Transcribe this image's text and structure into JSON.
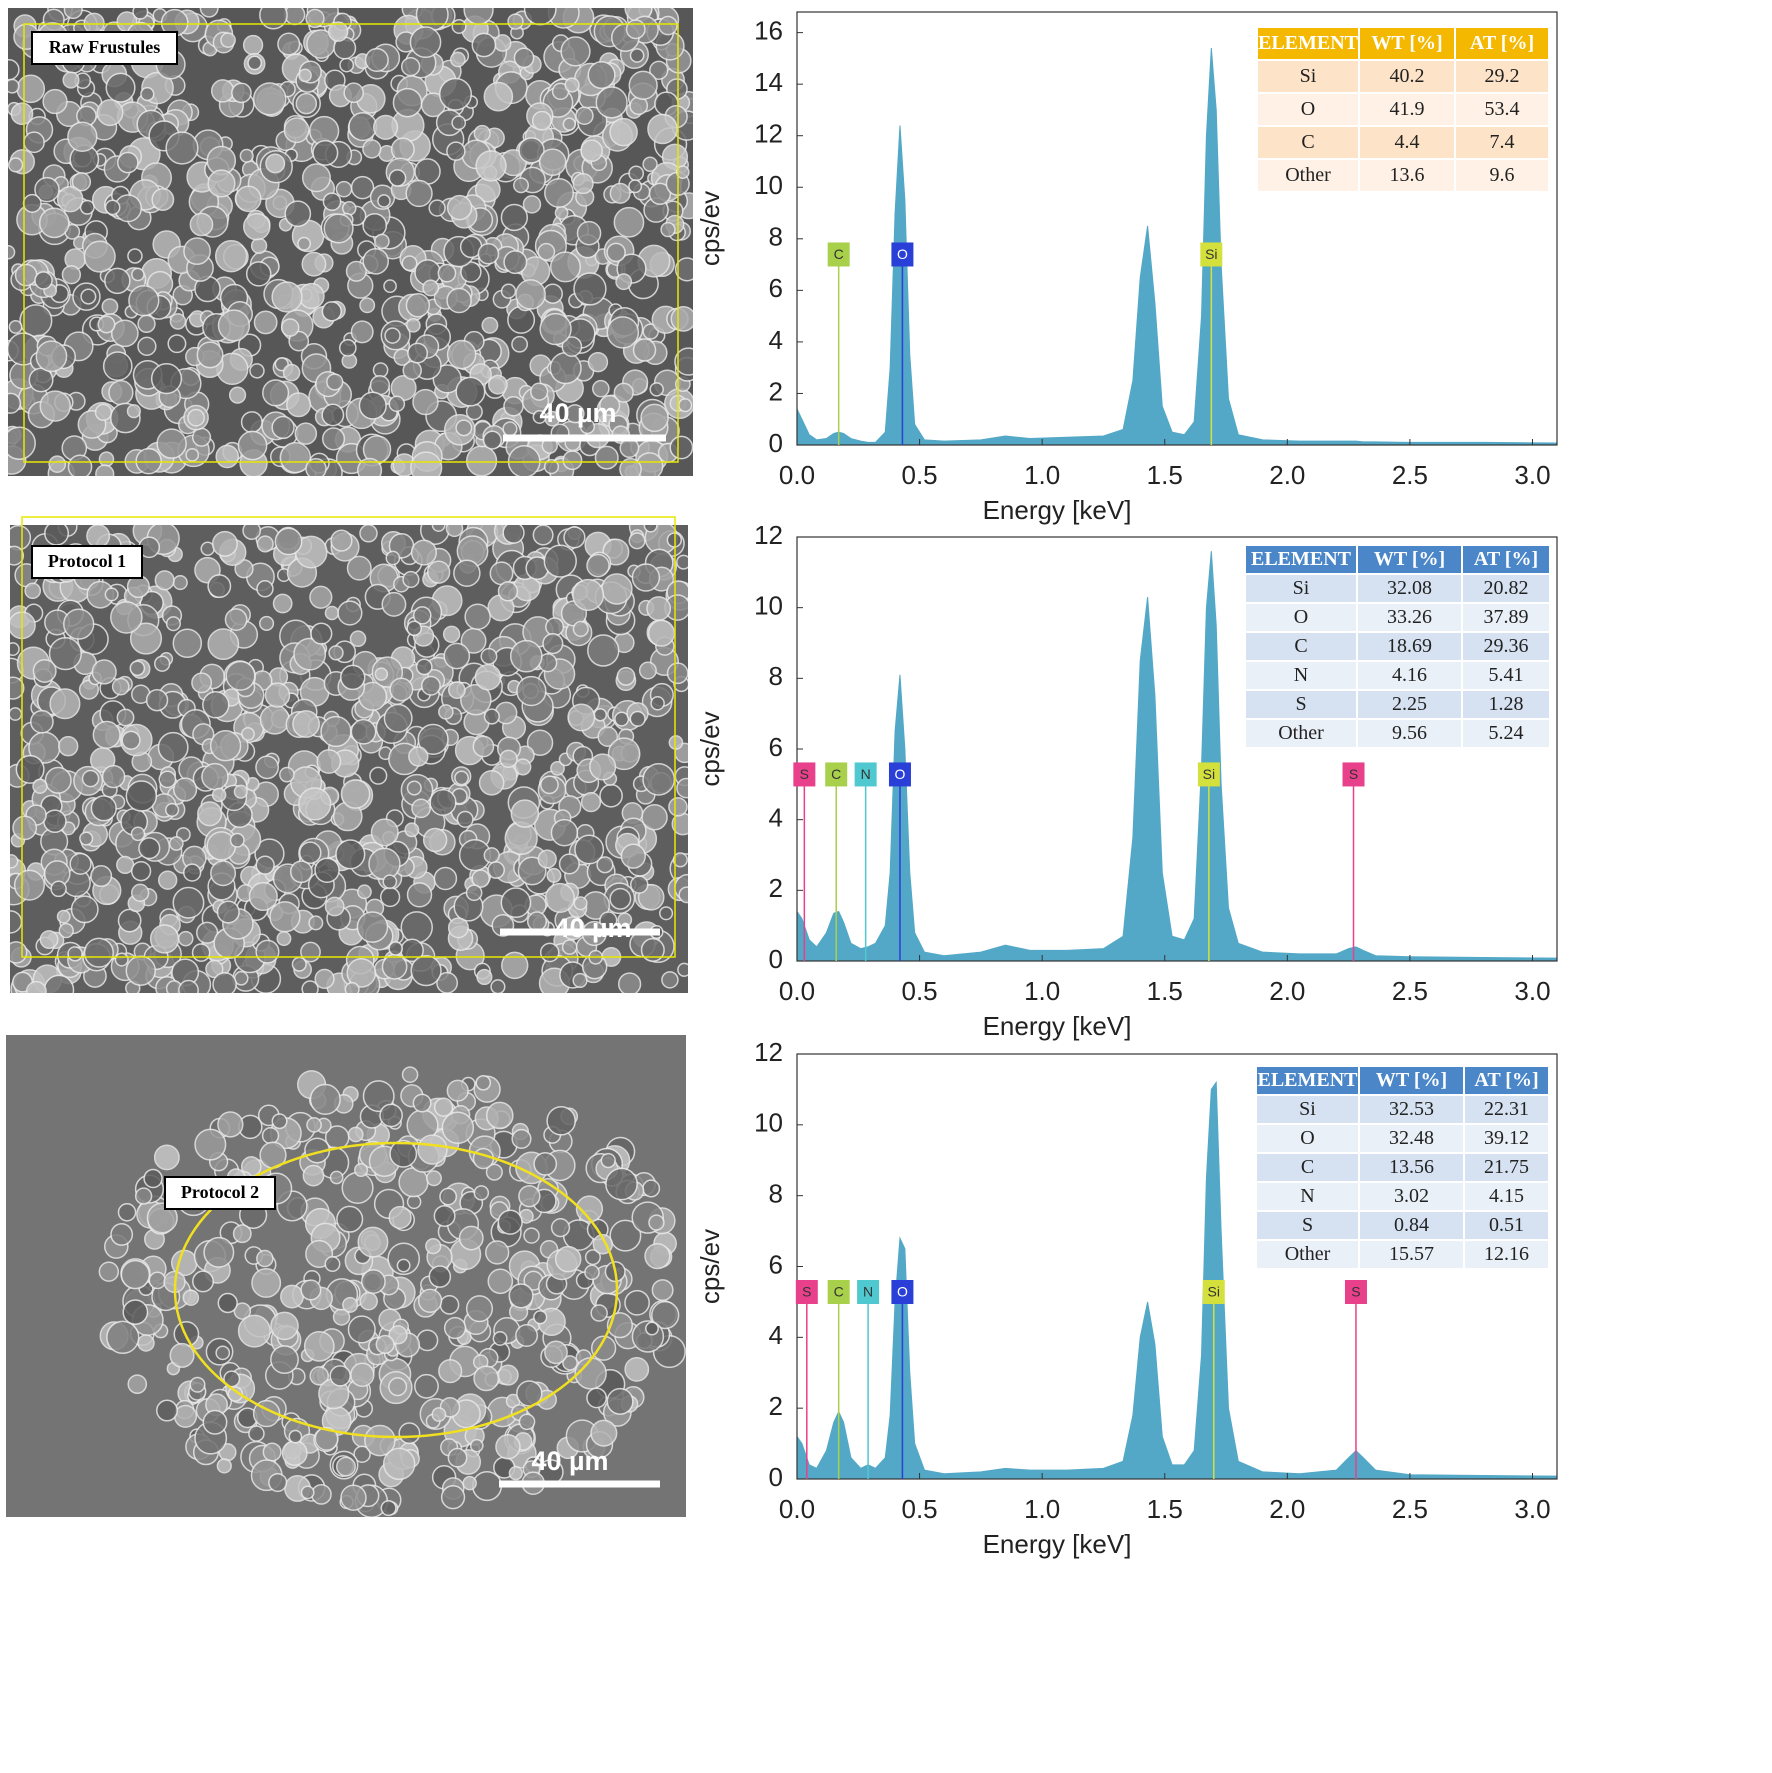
{
  "chart_data": [
    {
      "type": "area",
      "panel_label": "Raw Frustules",
      "scale_label": "40 µm",
      "color": "#52a8c6",
      "xlabel": "Energy [keV]",
      "ylabel": "cps/ev",
      "xlim": [
        0,
        3.1
      ],
      "ylim": [
        0,
        16.8
      ],
      "xticks": [
        {
          "value": 0,
          "label": "0.0"
        },
        0.5,
        {
          "value": 1,
          "label": "1.0"
        },
        1.5,
        {
          "value": 2,
          "label": "2.0"
        },
        2.5,
        {
          "value": 3,
          "label": "3.0"
        }
      ],
      "yticks": [
        0,
        2,
        4,
        6,
        8,
        10,
        12,
        14,
        16
      ],
      "x": [
        0,
        0.02,
        0.05,
        0.08,
        0.12,
        0.15,
        0.17,
        0.19,
        0.22,
        0.26,
        0.29,
        0.32,
        0.36,
        0.38,
        0.4,
        0.42,
        0.44,
        0.46,
        0.48,
        0.52,
        0.6,
        0.75,
        0.85,
        0.95,
        1.1,
        1.25,
        1.33,
        1.37,
        1.4,
        1.43,
        1.46,
        1.49,
        1.53,
        1.58,
        1.62,
        1.65,
        1.67,
        1.69,
        1.71,
        1.73,
        1.76,
        1.8,
        1.9,
        2.05,
        2.2,
        2.25,
        2.28,
        2.31,
        2.36,
        2.5,
        2.8,
        3.1
      ],
      "values": [
        1.4,
        1.0,
        0.4,
        0.2,
        0.25,
        0.45,
        0.5,
        0.45,
        0.25,
        0.15,
        0.1,
        0.1,
        0.5,
        3.0,
        9.0,
        12.4,
        9.5,
        3.5,
        0.8,
        0.2,
        0.15,
        0.2,
        0.35,
        0.25,
        0.3,
        0.35,
        0.6,
        2.5,
        6.5,
        8.5,
        5.5,
        1.5,
        0.5,
        0.4,
        0.9,
        5,
        12,
        15.4,
        13,
        7,
        1.8,
        0.4,
        0.2,
        0.15,
        0.15,
        0.15,
        0.15,
        0.12,
        0.12,
        0.1,
        0.1,
        0.08
      ],
      "markers": [
        {
          "label": "C",
          "x": 0.17,
          "color": "#a8d04a"
        },
        {
          "label": "O",
          "x": 0.43,
          "color": "#2a3fd8"
        },
        {
          "label": "Si",
          "x": 1.69,
          "color": "#d4e03c"
        }
      ],
      "table": {
        "header_color": "#f5b800",
        "row_colors": [
          "#fde3c8",
          "#fff1e5"
        ],
        "columns": [
          "ELEMENT",
          "WT [%]",
          "AT [%]"
        ],
        "rows": [
          [
            "Si",
            40.2,
            29.2
          ],
          [
            "O",
            41.9,
            53.4
          ],
          [
            "C",
            4.4,
            7.4
          ],
          [
            "Other",
            13.6,
            9.6
          ]
        ]
      }
    },
    {
      "type": "area",
      "panel_label": "Protocol 1",
      "scale_label": "40 µm",
      "color": "#52a8c6",
      "xlabel": "Energy [keV]",
      "ylabel": "cps/ev",
      "xlim": [
        0,
        3.1
      ],
      "ylim": [
        0,
        12
      ],
      "xticks": [
        {
          "value": 0,
          "label": "0.0"
        },
        0.5,
        {
          "value": 1,
          "label": "1.0"
        },
        1.5,
        {
          "value": 2,
          "label": "2.0"
        },
        2.5,
        {
          "value": 3,
          "label": "3.0"
        }
      ],
      "yticks": [
        0,
        2,
        4,
        6,
        8,
        10,
        12
      ],
      "x": [
        0,
        0.02,
        0.05,
        0.08,
        0.12,
        0.15,
        0.17,
        0.19,
        0.22,
        0.26,
        0.29,
        0.32,
        0.36,
        0.38,
        0.4,
        0.42,
        0.44,
        0.46,
        0.48,
        0.52,
        0.6,
        0.75,
        0.85,
        0.95,
        1.1,
        1.25,
        1.33,
        1.37,
        1.4,
        1.43,
        1.46,
        1.49,
        1.53,
        1.58,
        1.62,
        1.65,
        1.67,
        1.69,
        1.71,
        1.73,
        1.76,
        1.8,
        1.9,
        2.05,
        2.2,
        2.25,
        2.28,
        2.31,
        2.36,
        2.5,
        2.8,
        3.1
      ],
      "values": [
        1.4,
        1.2,
        0.6,
        0.4,
        0.8,
        1.35,
        1.4,
        1.1,
        0.5,
        0.35,
        0.4,
        0.5,
        1.0,
        2.5,
        6.5,
        8.1,
        6.0,
        2.5,
        0.8,
        0.25,
        0.15,
        0.25,
        0.45,
        0.3,
        0.3,
        0.35,
        0.7,
        3.5,
        8.5,
        10.3,
        7.5,
        2.5,
        0.7,
        0.6,
        1.2,
        5.5,
        10,
        11.6,
        9.5,
        5,
        1.5,
        0.5,
        0.25,
        0.2,
        0.2,
        0.35,
        0.4,
        0.3,
        0.15,
        0.12,
        0.1,
        0.08
      ],
      "markers": [
        {
          "label": "S",
          "x": 0.03,
          "color": "#e8408a"
        },
        {
          "label": "C",
          "x": 0.16,
          "color": "#a8d04a"
        },
        {
          "label": "N",
          "x": 0.28,
          "color": "#50c8d0"
        },
        {
          "label": "O",
          "x": 0.42,
          "color": "#2a3fd8"
        },
        {
          "label": "Si",
          "x": 1.68,
          "color": "#d4e03c"
        },
        {
          "label": "S",
          "x": 2.27,
          "color": "#e8408a"
        }
      ],
      "table": {
        "header_color": "#4a86c8",
        "row_colors": [
          "#d6e2f2",
          "#eaf0f8"
        ],
        "columns": [
          "ELEMENT",
          "WT [%]",
          "AT [%]"
        ],
        "rows": [
          [
            "Si",
            32.08,
            20.82
          ],
          [
            "O",
            33.26,
            37.89
          ],
          [
            "C",
            18.69,
            29.36
          ],
          [
            "N",
            4.16,
            5.41
          ],
          [
            "S",
            2.25,
            1.28
          ],
          [
            "Other",
            9.56,
            5.24
          ]
        ]
      }
    },
    {
      "type": "area",
      "panel_label": "Protocol 2",
      "scale_label": "40 µm",
      "color": "#52a8c6",
      "xlabel": "Energy [keV]",
      "ylabel": "cps/ev",
      "xlim": [
        0,
        3.1
      ],
      "ylim": [
        0,
        12
      ],
      "xticks": [
        {
          "value": 0,
          "label": "0.0"
        },
        0.5,
        {
          "value": 1,
          "label": "1.0"
        },
        1.5,
        {
          "value": 2,
          "label": "2.0"
        },
        2.5,
        {
          "value": 3,
          "label": "3.0"
        }
      ],
      "yticks": [
        0,
        2,
        4,
        6,
        8,
        10,
        12
      ],
      "x": [
        0,
        0.02,
        0.05,
        0.08,
        0.12,
        0.15,
        0.17,
        0.19,
        0.22,
        0.26,
        0.29,
        0.32,
        0.36,
        0.38,
        0.4,
        0.42,
        0.44,
        0.46,
        0.48,
        0.52,
        0.6,
        0.75,
        0.85,
        0.95,
        1.1,
        1.25,
        1.33,
        1.37,
        1.4,
        1.43,
        1.46,
        1.49,
        1.53,
        1.58,
        1.62,
        1.65,
        1.67,
        1.69,
        1.71,
        1.73,
        1.76,
        1.8,
        1.9,
        2.05,
        2.2,
        2.25,
        2.28,
        2.31,
        2.36,
        2.5,
        2.8,
        3.1
      ],
      "values": [
        1.2,
        1.0,
        0.4,
        0.3,
        0.8,
        1.6,
        1.9,
        1.6,
        0.6,
        0.3,
        0.4,
        0.3,
        0.6,
        1.8,
        5.0,
        6.8,
        6.5,
        3.0,
        1.0,
        0.25,
        0.15,
        0.2,
        0.3,
        0.25,
        0.25,
        0.3,
        0.5,
        1.8,
        4.0,
        5.0,
        3.8,
        1.2,
        0.4,
        0.4,
        0.8,
        3.5,
        8.5,
        11.0,
        11.2,
        7.0,
        2.0,
        0.5,
        0.2,
        0.15,
        0.25,
        0.6,
        0.8,
        0.6,
        0.25,
        0.12,
        0.1,
        0.08
      ],
      "markers": [
        {
          "label": "S",
          "x": 0.04,
          "color": "#e8408a"
        },
        {
          "label": "C",
          "x": 0.17,
          "color": "#a8d04a"
        },
        {
          "label": "N",
          "x": 0.29,
          "color": "#50c8d0"
        },
        {
          "label": "O",
          "x": 0.43,
          "color": "#2a3fd8"
        },
        {
          "label": "Si",
          "x": 1.7,
          "color": "#d4e03c"
        },
        {
          "label": "S",
          "x": 2.28,
          "color": "#e8408a"
        }
      ],
      "table": {
        "header_color": "#4a86c8",
        "row_colors": [
          "#d6e2f2",
          "#eaf0f8"
        ],
        "columns": [
          "ELEMENT",
          "WT [%]",
          "AT [%]"
        ],
        "rows": [
          [
            "Si",
            32.53,
            22.31
          ],
          [
            "O",
            32.48,
            39.12
          ],
          [
            "C",
            13.56,
            21.75
          ],
          [
            "N",
            3.02,
            4.15
          ],
          [
            "S",
            0.84,
            0.51
          ],
          [
            "Other",
            15.57,
            12.16
          ]
        ]
      }
    }
  ]
}
